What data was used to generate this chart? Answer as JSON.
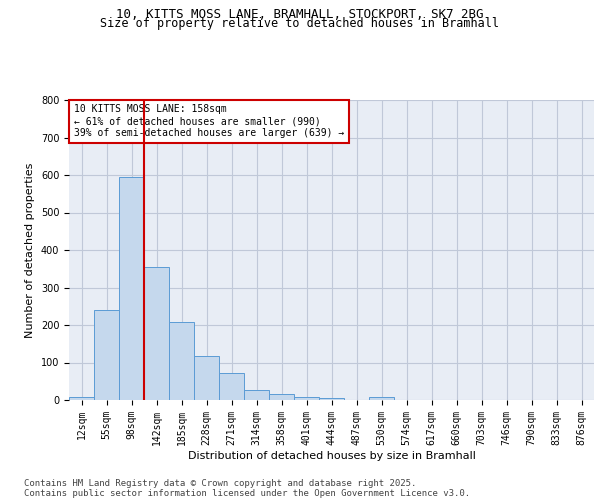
{
  "title_line1": "10, KITTS MOSS LANE, BRAMHALL, STOCKPORT, SK7 2BG",
  "title_line2": "Size of property relative to detached houses in Bramhall",
  "xlabel": "Distribution of detached houses by size in Bramhall",
  "ylabel": "Number of detached properties",
  "bar_labels": [
    "12sqm",
    "55sqm",
    "98sqm",
    "142sqm",
    "185sqm",
    "228sqm",
    "271sqm",
    "314sqm",
    "358sqm",
    "401sqm",
    "444sqm",
    "487sqm",
    "530sqm",
    "574sqm",
    "617sqm",
    "660sqm",
    "703sqm",
    "746sqm",
    "790sqm",
    "833sqm",
    "876sqm"
  ],
  "bar_values": [
    8,
    240,
    595,
    355,
    207,
    118,
    72,
    28,
    15,
    7,
    5,
    0,
    8,
    0,
    0,
    0,
    0,
    0,
    0,
    0,
    0
  ],
  "bar_color": "#c5d8ed",
  "bar_edge_color": "#5b9bd5",
  "vline_x_index": 3,
  "vline_color": "#cc0000",
  "annotation_text": "10 KITTS MOSS LANE: 158sqm\n← 61% of detached houses are smaller (990)\n39% of semi-detached houses are larger (639) →",
  "annotation_box_color": "#ffffff",
  "annotation_box_edge_color": "#cc0000",
  "ylim": [
    0,
    800
  ],
  "yticks": [
    0,
    100,
    200,
    300,
    400,
    500,
    600,
    700,
    800
  ],
  "grid_color": "#c0c8d8",
  "background_color": "#e8edf5",
  "footer_line1": "Contains HM Land Registry data © Crown copyright and database right 2025.",
  "footer_line2": "Contains public sector information licensed under the Open Government Licence v3.0.",
  "title_fontsize": 9,
  "subtitle_fontsize": 8.5,
  "axis_label_fontsize": 8,
  "tick_fontsize": 7,
  "annotation_fontsize": 7,
  "footer_fontsize": 6.5
}
